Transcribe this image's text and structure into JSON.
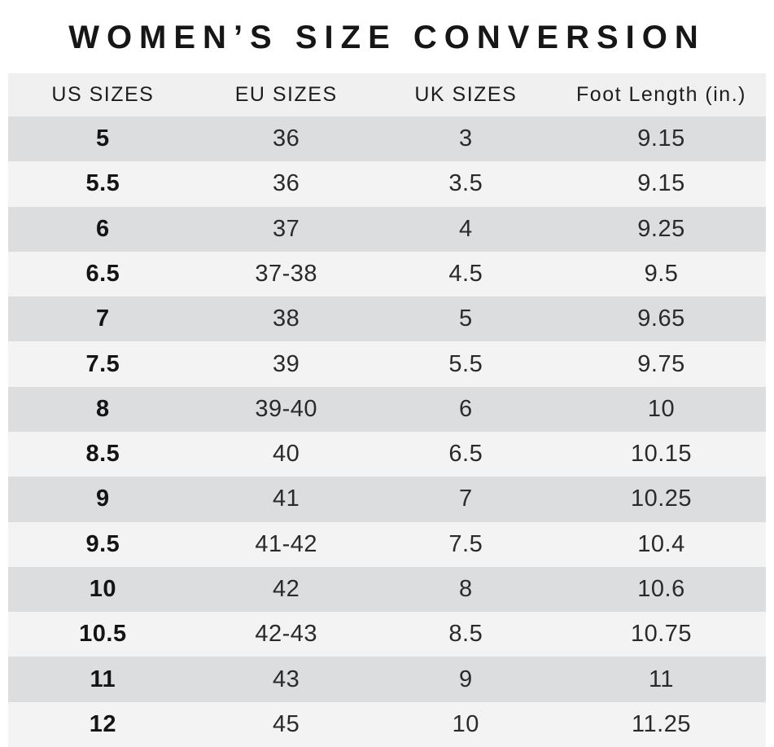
{
  "title": "WOMEN’S SIZE CONVERSION",
  "chart_data": {
    "type": "table",
    "title": "WOMEN’S SIZE CONVERSION",
    "columns": [
      "US SIZES",
      "EU SIZES",
      "UK SIZES",
      "Foot Length (in.)"
    ],
    "rows": [
      [
        "5",
        "36",
        "3",
        "9.15"
      ],
      [
        "5.5",
        "36",
        "3.5",
        "9.15"
      ],
      [
        "6",
        "37",
        "4",
        "9.25"
      ],
      [
        "6.5",
        "37-38",
        "4.5",
        "9.5"
      ],
      [
        "7",
        "38",
        "5",
        "9.65"
      ],
      [
        "7.5",
        "39",
        "5.5",
        "9.75"
      ],
      [
        "8",
        "39-40",
        "6",
        "10"
      ],
      [
        "8.5",
        "40",
        "6.5",
        "10.15"
      ],
      [
        "9",
        "41",
        "7",
        "10.25"
      ],
      [
        "9.5",
        "41-42",
        "7.5",
        "10.4"
      ],
      [
        "10",
        "42",
        "8",
        "10.6"
      ],
      [
        "10.5",
        "42-43",
        "8.5",
        "10.75"
      ],
      [
        "11",
        "43",
        "9",
        "11"
      ],
      [
        "12",
        "45",
        "10",
        "11.25"
      ]
    ],
    "layout_hints": {
      "first_row_stripe": "dark",
      "us_sizes_column_bold": true,
      "grid": "off",
      "alignment": "center"
    }
  },
  "colors": {
    "page_bg": "#ffffff",
    "header_bg": "#f0f0f0",
    "row_dark": "#dcddde",
    "row_light": "#f3f3f4",
    "text": "#2a2a2a"
  }
}
